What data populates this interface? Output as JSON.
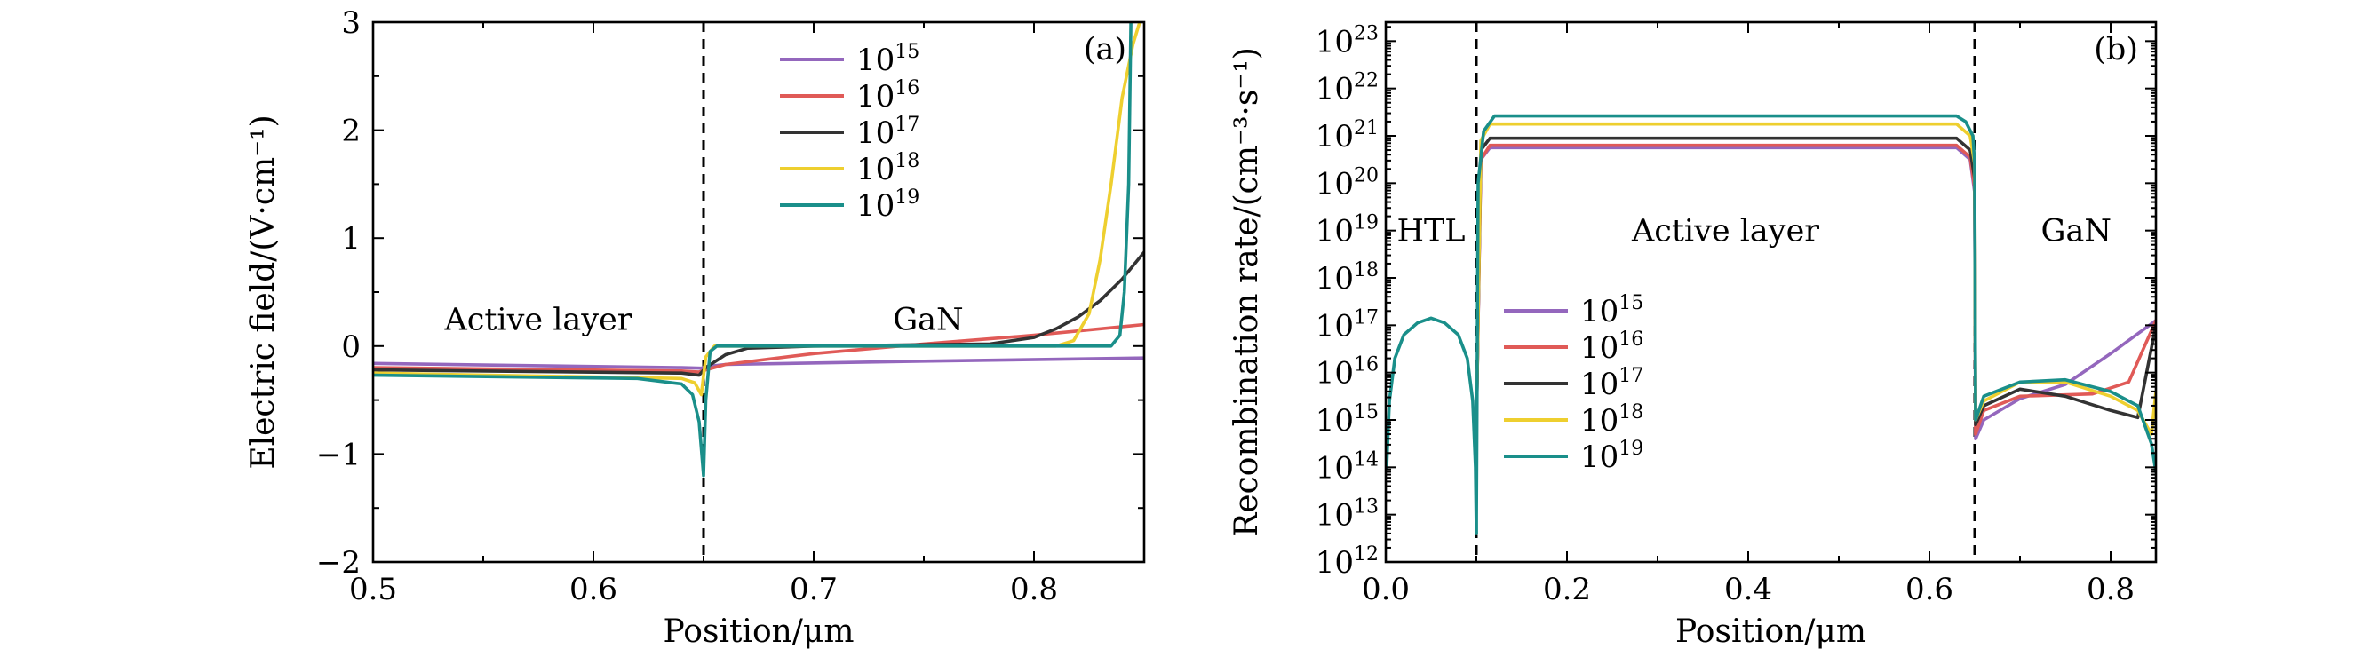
{
  "chart_data": [
    {
      "id": "a",
      "type": "line",
      "panel_label": "(a)",
      "xlabel": "Position/μm",
      "ylabel": "Electric field/(V·cm⁻¹)",
      "xlim": [
        0.5,
        0.85
      ],
      "ylim": [
        -2,
        3
      ],
      "xticks": [
        {
          "v": 0.5,
          "label": "0.5"
        },
        {
          "v": 0.6,
          "label": "0.6"
        },
        {
          "v": 0.7,
          "label": "0.7"
        },
        {
          "v": 0.8,
          "label": "0.8"
        }
      ],
      "yticks": [
        {
          "v": -2,
          "label": "−2"
        },
        {
          "v": -1,
          "label": "−1"
        },
        {
          "v": 0,
          "label": "0"
        },
        {
          "v": 1,
          "label": "1"
        },
        {
          "v": 2,
          "label": "2"
        },
        {
          "v": 3,
          "label": "3"
        }
      ],
      "dividers": [
        0.65
      ],
      "regions": [
        {
          "text": "Active layer",
          "x": 0.575,
          "y": 0.25
        },
        {
          "text": "GaN",
          "x": 0.752,
          "y": 0.25
        }
      ],
      "legend_position": "top-center",
      "series": [
        {
          "name": "10^15",
          "color": "#9467bd",
          "points": [
            [
              0.5,
              -0.16
            ],
            [
              0.64,
              -0.2
            ],
            [
              0.649,
              -0.205
            ],
            [
              0.651,
              -0.19
            ],
            [
              0.66,
              -0.17
            ],
            [
              0.75,
              -0.14
            ],
            [
              0.85,
              -0.11
            ]
          ]
        },
        {
          "name": "10^16",
          "color": "#e05a57",
          "points": [
            [
              0.5,
              -0.2
            ],
            [
              0.64,
              -0.23
            ],
            [
              0.648,
              -0.24
            ],
            [
              0.651,
              -0.22
            ],
            [
              0.66,
              -0.17
            ],
            [
              0.7,
              -0.07
            ],
            [
              0.75,
              0.02
            ],
            [
              0.8,
              0.1
            ],
            [
              0.85,
              0.2
            ]
          ]
        },
        {
          "name": "10^17",
          "color": "#333333",
          "points": [
            [
              0.5,
              -0.22
            ],
            [
              0.64,
              -0.25
            ],
            [
              0.648,
              -0.27
            ],
            [
              0.651,
              -0.2
            ],
            [
              0.66,
              -0.08
            ],
            [
              0.67,
              -0.02
            ],
            [
              0.7,
              0.0
            ],
            [
              0.78,
              0.02
            ],
            [
              0.8,
              0.08
            ],
            [
              0.81,
              0.16
            ],
            [
              0.82,
              0.27
            ],
            [
              0.83,
              0.42
            ],
            [
              0.84,
              0.62
            ],
            [
              0.85,
              0.87
            ]
          ]
        },
        {
          "name": "10^18",
          "color": "#eecf2f",
          "points": [
            [
              0.5,
              -0.25
            ],
            [
              0.64,
              -0.3
            ],
            [
              0.646,
              -0.34
            ],
            [
              0.649,
              -0.45
            ],
            [
              0.651,
              -0.1
            ],
            [
              0.655,
              0.0
            ],
            [
              0.81,
              0.0
            ],
            [
              0.818,
              0.05
            ],
            [
              0.825,
              0.3
            ],
            [
              0.83,
              0.8
            ],
            [
              0.835,
              1.5
            ],
            [
              0.84,
              2.3
            ],
            [
              0.845,
              2.8
            ],
            [
              0.848,
              3.0
            ]
          ]
        },
        {
          "name": "10^19",
          "color": "#1a8f8a",
          "points": [
            [
              0.5,
              -0.27
            ],
            [
              0.62,
              -0.3
            ],
            [
              0.64,
              -0.35
            ],
            [
              0.645,
              -0.45
            ],
            [
              0.648,
              -0.7
            ],
            [
              0.65,
              -1.2
            ],
            [
              0.651,
              -0.5
            ],
            [
              0.653,
              -0.05
            ],
            [
              0.656,
              0.0
            ],
            [
              0.835,
              0.0
            ],
            [
              0.839,
              0.1
            ],
            [
              0.841,
              0.5
            ],
            [
              0.843,
              1.5
            ],
            [
              0.844,
              3.0
            ]
          ]
        }
      ]
    },
    {
      "id": "b",
      "type": "line",
      "panel_label": "(b)",
      "xlabel": "Position/μm",
      "ylabel": "Recombination rate/(cm⁻³·s⁻¹)",
      "yscale": "log",
      "xlim": [
        0,
        0.85
      ],
      "ylim": [
        12,
        23.4
      ],
      "xticks": [
        {
          "v": 0,
          "label": "0.0"
        },
        {
          "v": 0.2,
          "label": "0.2"
        },
        {
          "v": 0.4,
          "label": "0.4"
        },
        {
          "v": 0.6,
          "label": "0.6"
        },
        {
          "v": 0.8,
          "label": "0.8"
        }
      ],
      "yticks": [
        {
          "v": 12,
          "exp": "12"
        },
        {
          "v": 13,
          "exp": "13"
        },
        {
          "v": 14,
          "exp": "14"
        },
        {
          "v": 15,
          "exp": "15"
        },
        {
          "v": 16,
          "exp": "16"
        },
        {
          "v": 17,
          "exp": "17"
        },
        {
          "v": 18,
          "exp": "18"
        },
        {
          "v": 19,
          "exp": "19"
        },
        {
          "v": 20,
          "exp": "20"
        },
        {
          "v": 21,
          "exp": "21"
        },
        {
          "v": 22,
          "exp": "22"
        },
        {
          "v": 23,
          "exp": "23"
        }
      ],
      "dividers": [
        0.1,
        0.65
      ],
      "regions": [
        {
          "text": "HTL",
          "x": 0.05,
          "y": 19.0
        },
        {
          "text": "Active layer",
          "x": 0.375,
          "y": 19.0
        },
        {
          "text": "GaN",
          "x": 0.762,
          "y": 19.0
        }
      ],
      "legend_position": "middle-left",
      "htl_curve": {
        "color": "#1a8f8a",
        "points": [
          [
            0.001,
            14.0
          ],
          [
            0.004,
            15.4
          ],
          [
            0.01,
            16.3
          ],
          [
            0.02,
            16.8
          ],
          [
            0.035,
            17.05
          ],
          [
            0.05,
            17.15
          ],
          [
            0.065,
            17.05
          ],
          [
            0.08,
            16.8
          ],
          [
            0.09,
            16.3
          ],
          [
            0.096,
            15.4
          ],
          [
            0.099,
            14.0
          ],
          [
            0.1,
            12.6
          ]
        ]
      },
      "series": [
        {
          "name": "10^15",
          "color": "#9467bd",
          "points": [
            [
              0.1,
              14.8
            ],
            [
              0.105,
              20.5
            ],
            [
              0.115,
              20.75
            ],
            [
              0.63,
              20.75
            ],
            [
              0.645,
              20.5
            ],
            [
              0.65,
              19.8
            ],
            [
              0.651,
              14.6
            ],
            [
              0.66,
              15.0
            ],
            [
              0.7,
              15.45
            ],
            [
              0.75,
              15.75
            ],
            [
              0.8,
              16.4
            ],
            [
              0.85,
              17.1
            ]
          ]
        },
        {
          "name": "10^16",
          "color": "#e05a57",
          "points": [
            [
              0.1,
              14.8
            ],
            [
              0.105,
              20.5
            ],
            [
              0.115,
              20.8
            ],
            [
              0.63,
              20.8
            ],
            [
              0.645,
              20.55
            ],
            [
              0.65,
              19.9
            ],
            [
              0.651,
              14.7
            ],
            [
              0.66,
              15.2
            ],
            [
              0.7,
              15.5
            ],
            [
              0.78,
              15.55
            ],
            [
              0.82,
              15.8
            ],
            [
              0.85,
              17.1
            ]
          ]
        },
        {
          "name": "10^17",
          "color": "#333333",
          "points": [
            [
              0.1,
              14.8
            ],
            [
              0.105,
              20.7
            ],
            [
              0.115,
              20.95
            ],
            [
              0.63,
              20.95
            ],
            [
              0.645,
              20.7
            ],
            [
              0.65,
              20.1
            ],
            [
              0.651,
              14.9
            ],
            [
              0.66,
              15.3
            ],
            [
              0.7,
              15.65
            ],
            [
              0.75,
              15.5
            ],
            [
              0.8,
              15.2
            ],
            [
              0.83,
              15.05
            ],
            [
              0.85,
              17.0
            ]
          ]
        },
        {
          "name": "10^18",
          "color": "#eecf2f",
          "points": [
            [
              0.1,
              14.8
            ],
            [
              0.105,
              20.9
            ],
            [
              0.115,
              21.25
            ],
            [
              0.63,
              21.25
            ],
            [
              0.645,
              21.0
            ],
            [
              0.65,
              20.4
            ],
            [
              0.651,
              15.0
            ],
            [
              0.66,
              15.4
            ],
            [
              0.7,
              15.8
            ],
            [
              0.75,
              15.8
            ],
            [
              0.8,
              15.5
            ],
            [
              0.83,
              15.2
            ],
            [
              0.845,
              14.7
            ],
            [
              0.85,
              15.6
            ]
          ]
        },
        {
          "name": "10^19",
          "color": "#1a8f8a",
          "points": [
            [
              0.1,
              12.6
            ],
            [
              0.102,
              20.0
            ],
            [
              0.108,
              21.1
            ],
            [
              0.12,
              21.42
            ],
            [
              0.63,
              21.42
            ],
            [
              0.64,
              21.3
            ],
            [
              0.648,
              21.0
            ],
            [
              0.65,
              20.4
            ],
            [
              0.651,
              15.0
            ],
            [
              0.66,
              15.5
            ],
            [
              0.7,
              15.8
            ],
            [
              0.75,
              15.85
            ],
            [
              0.8,
              15.6
            ],
            [
              0.83,
              15.3
            ],
            [
              0.845,
              14.5
            ],
            [
              0.85,
              13.9
            ]
          ]
        }
      ]
    }
  ]
}
